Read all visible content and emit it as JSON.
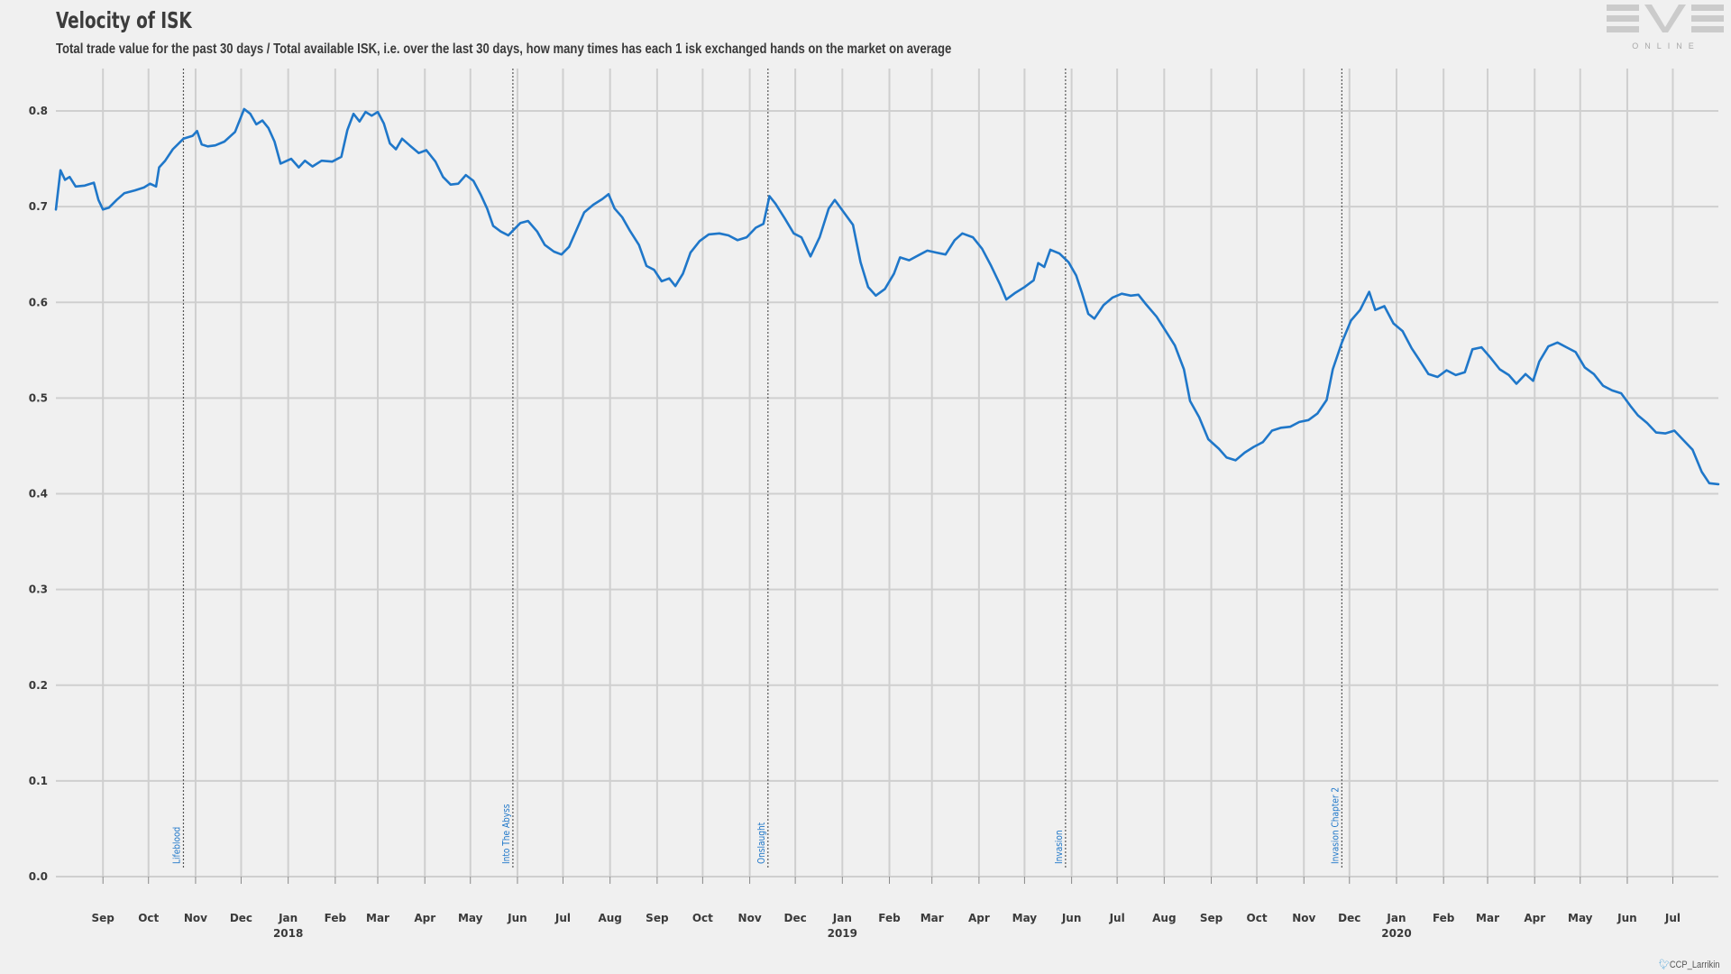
{
  "header": {
    "title": "Velocity of ISK",
    "subtitle": "Total trade value for the past 30 days / Total available ISK, i.e. over the last 30 days, how many times has each 1 isk exchanged hands on the market on average"
  },
  "logo": {
    "text": "EVE",
    "subtext": "ONLINE"
  },
  "credit": {
    "handle": "CCP_Larrikin",
    "icon": "twitter-bird-icon"
  },
  "colors": {
    "line": "#1f77c9",
    "grid": "#cfcfcf",
    "background": "#f0f0f0",
    "event_text": "#1f77c9"
  },
  "chart_data": {
    "type": "line",
    "title": "Velocity of ISK",
    "xlabel": "",
    "ylabel": "",
    "ylim": [
      0.0,
      0.8
    ],
    "y_ticks": [
      "0.0",
      "0.1",
      "0.2",
      "0.3",
      "0.4",
      "0.5",
      "0.6",
      "0.7",
      "0.8"
    ],
    "x_range": [
      "2017-08-01",
      "2020-07-31"
    ],
    "x_ticks": [
      {
        "date": "2017-09-01",
        "label": "Sep"
      },
      {
        "date": "2017-10-01",
        "label": "Oct"
      },
      {
        "date": "2017-11-01",
        "label": "Nov"
      },
      {
        "date": "2017-12-01",
        "label": "Dec"
      },
      {
        "date": "2018-01-01",
        "label": "Jan",
        "year": "2018"
      },
      {
        "date": "2018-02-01",
        "label": "Feb"
      },
      {
        "date": "2018-03-01",
        "label": "Mar"
      },
      {
        "date": "2018-04-01",
        "label": "Apr"
      },
      {
        "date": "2018-05-01",
        "label": "May"
      },
      {
        "date": "2018-06-01",
        "label": "Jun"
      },
      {
        "date": "2018-07-01",
        "label": "Jul"
      },
      {
        "date": "2018-08-01",
        "label": "Aug"
      },
      {
        "date": "2018-09-01",
        "label": "Sep"
      },
      {
        "date": "2018-10-01",
        "label": "Oct"
      },
      {
        "date": "2018-11-01",
        "label": "Nov"
      },
      {
        "date": "2018-12-01",
        "label": "Dec"
      },
      {
        "date": "2019-01-01",
        "label": "Jan",
        "year": "2019"
      },
      {
        "date": "2019-02-01",
        "label": "Feb"
      },
      {
        "date": "2019-03-01",
        "label": "Mar"
      },
      {
        "date": "2019-04-01",
        "label": "Apr"
      },
      {
        "date": "2019-05-01",
        "label": "May"
      },
      {
        "date": "2019-06-01",
        "label": "Jun"
      },
      {
        "date": "2019-07-01",
        "label": "Jul"
      },
      {
        "date": "2019-08-01",
        "label": "Aug"
      },
      {
        "date": "2019-09-01",
        "label": "Sep"
      },
      {
        "date": "2019-10-01",
        "label": "Oct"
      },
      {
        "date": "2019-11-01",
        "label": "Nov"
      },
      {
        "date": "2019-12-01",
        "label": "Dec"
      },
      {
        "date": "2020-01-01",
        "label": "Jan",
        "year": "2020"
      },
      {
        "date": "2020-02-01",
        "label": "Feb"
      },
      {
        "date": "2020-03-01",
        "label": "Mar"
      },
      {
        "date": "2020-04-01",
        "label": "Apr"
      },
      {
        "date": "2020-05-01",
        "label": "May"
      },
      {
        "date": "2020-06-01",
        "label": "Jun"
      },
      {
        "date": "2020-07-01",
        "label": "Jul"
      }
    ],
    "grid": true,
    "events": [
      {
        "date": "2017-10-24",
        "label": "Lifeblood"
      },
      {
        "date": "2018-05-29",
        "label": "Into The Abyss"
      },
      {
        "date": "2018-11-13",
        "label": "Onslaught"
      },
      {
        "date": "2019-05-28",
        "label": "Invasion"
      },
      {
        "date": "2019-11-26",
        "label": "Invasion Chapter 2"
      }
    ],
    "series": [
      {
        "color": "#1f77c9",
        "points": [
          [
            "2017-08-01",
            0.697
          ],
          [
            "2017-08-04",
            0.738
          ],
          [
            "2017-08-07",
            0.728
          ],
          [
            "2017-08-10",
            0.731
          ],
          [
            "2017-08-14",
            0.721
          ],
          [
            "2017-08-20",
            0.722
          ],
          [
            "2017-08-26",
            0.725
          ],
          [
            "2017-08-29",
            0.707
          ],
          [
            "2017-09-01",
            0.697
          ],
          [
            "2017-09-05",
            0.699
          ],
          [
            "2017-09-10",
            0.707
          ],
          [
            "2017-09-15",
            0.714
          ],
          [
            "2017-09-22",
            0.717
          ],
          [
            "2017-09-28",
            0.72
          ],
          [
            "2017-10-02",
            0.724
          ],
          [
            "2017-10-06",
            0.721
          ],
          [
            "2017-10-08",
            0.741
          ],
          [
            "2017-10-12",
            0.748
          ],
          [
            "2017-10-17",
            0.76
          ],
          [
            "2017-10-24",
            0.771
          ],
          [
            "2017-10-30",
            0.774
          ],
          [
            "2017-11-02",
            0.779
          ],
          [
            "2017-11-05",
            0.765
          ],
          [
            "2017-11-09",
            0.763
          ],
          [
            "2017-11-14",
            0.764
          ],
          [
            "2017-11-20",
            0.768
          ],
          [
            "2017-11-27",
            0.778
          ],
          [
            "2017-12-03",
            0.802
          ],
          [
            "2017-12-07",
            0.797
          ],
          [
            "2017-12-11",
            0.786
          ],
          [
            "2017-12-15",
            0.79
          ],
          [
            "2017-12-19",
            0.782
          ],
          [
            "2017-12-23",
            0.768
          ],
          [
            "2017-12-27",
            0.745
          ],
          [
            "2018-01-03",
            0.75
          ],
          [
            "2018-01-08",
            0.741
          ],
          [
            "2018-01-12",
            0.748
          ],
          [
            "2018-01-17",
            0.742
          ],
          [
            "2018-01-23",
            0.748
          ],
          [
            "2018-01-30",
            0.747
          ],
          [
            "2018-02-05",
            0.752
          ],
          [
            "2018-02-09",
            0.78
          ],
          [
            "2018-02-13",
            0.797
          ],
          [
            "2018-02-17",
            0.789
          ],
          [
            "2018-02-21",
            0.799
          ],
          [
            "2018-02-25",
            0.795
          ],
          [
            "2018-03-01",
            0.799
          ],
          [
            "2018-03-05",
            0.787
          ],
          [
            "2018-03-09",
            0.766
          ],
          [
            "2018-03-13",
            0.76
          ],
          [
            "2018-03-17",
            0.771
          ],
          [
            "2018-03-22",
            0.764
          ],
          [
            "2018-03-28",
            0.756
          ],
          [
            "2018-04-02",
            0.759
          ],
          [
            "2018-04-08",
            0.747
          ],
          [
            "2018-04-13",
            0.731
          ],
          [
            "2018-04-18",
            0.723
          ],
          [
            "2018-04-23",
            0.724
          ],
          [
            "2018-04-28",
            0.733
          ],
          [
            "2018-05-03",
            0.727
          ],
          [
            "2018-05-08",
            0.712
          ],
          [
            "2018-05-12",
            0.698
          ],
          [
            "2018-05-16",
            0.68
          ],
          [
            "2018-05-21",
            0.674
          ],
          [
            "2018-05-26",
            0.67
          ],
          [
            "2018-05-29",
            0.675
          ],
          [
            "2018-06-03",
            0.683
          ],
          [
            "2018-06-08",
            0.685
          ],
          [
            "2018-06-14",
            0.674
          ],
          [
            "2018-06-19",
            0.66
          ],
          [
            "2018-06-25",
            0.653
          ],
          [
            "2018-06-30",
            0.65
          ],
          [
            "2018-07-05",
            0.658
          ],
          [
            "2018-07-10",
            0.676
          ],
          [
            "2018-07-15",
            0.694
          ],
          [
            "2018-07-21",
            0.702
          ],
          [
            "2018-07-27",
            0.708
          ],
          [
            "2018-07-31",
            0.713
          ],
          [
            "2018-08-04",
            0.698
          ],
          [
            "2018-08-09",
            0.689
          ],
          [
            "2018-08-14",
            0.675
          ],
          [
            "2018-08-20",
            0.66
          ],
          [
            "2018-08-25",
            0.638
          ],
          [
            "2018-08-30",
            0.634
          ],
          [
            "2018-09-04",
            0.622
          ],
          [
            "2018-09-09",
            0.625
          ],
          [
            "2018-09-13",
            0.617
          ],
          [
            "2018-09-18",
            0.63
          ],
          [
            "2018-09-23",
            0.652
          ],
          [
            "2018-09-29",
            0.664
          ],
          [
            "2018-10-05",
            0.671
          ],
          [
            "2018-10-12",
            0.672
          ],
          [
            "2018-10-18",
            0.67
          ],
          [
            "2018-10-24",
            0.665
          ],
          [
            "2018-10-30",
            0.668
          ],
          [
            "2018-11-05",
            0.678
          ],
          [
            "2018-11-10",
            0.682
          ],
          [
            "2018-11-14",
            0.711
          ],
          [
            "2018-11-18",
            0.703
          ],
          [
            "2018-11-24",
            0.688
          ],
          [
            "2018-11-30",
            0.672
          ],
          [
            "2018-12-05",
            0.668
          ],
          [
            "2018-12-11",
            0.648
          ],
          [
            "2018-12-17",
            0.668
          ],
          [
            "2018-12-23",
            0.698
          ],
          [
            "2018-12-27",
            0.707
          ],
          [
            "2019-01-02",
            0.694
          ],
          [
            "2019-01-08",
            0.681
          ],
          [
            "2019-01-13",
            0.642
          ],
          [
            "2019-01-18",
            0.616
          ],
          [
            "2019-01-23",
            0.607
          ],
          [
            "2019-01-29",
            0.614
          ],
          [
            "2019-02-04",
            0.63
          ],
          [
            "2019-02-08",
            0.647
          ],
          [
            "2019-02-14",
            0.644
          ],
          [
            "2019-02-20",
            0.649
          ],
          [
            "2019-02-26",
            0.654
          ],
          [
            "2019-03-04",
            0.652
          ],
          [
            "2019-03-10",
            0.65
          ],
          [
            "2019-03-16",
            0.665
          ],
          [
            "2019-03-21",
            0.672
          ],
          [
            "2019-03-28",
            0.668
          ],
          [
            "2019-04-03",
            0.656
          ],
          [
            "2019-04-09",
            0.638
          ],
          [
            "2019-04-15",
            0.618
          ],
          [
            "2019-04-19",
            0.603
          ],
          [
            "2019-04-25",
            0.61
          ],
          [
            "2019-05-01",
            0.616
          ],
          [
            "2019-05-07",
            0.623
          ],
          [
            "2019-05-10",
            0.641
          ],
          [
            "2019-05-14",
            0.637
          ],
          [
            "2019-05-18",
            0.655
          ],
          [
            "2019-05-24",
            0.651
          ],
          [
            "2019-05-30",
            0.642
          ],
          [
            "2019-06-04",
            0.628
          ],
          [
            "2019-06-08",
            0.609
          ],
          [
            "2019-06-12",
            0.588
          ],
          [
            "2019-06-16",
            0.583
          ],
          [
            "2019-06-22",
            0.597
          ],
          [
            "2019-06-28",
            0.605
          ],
          [
            "2019-07-04",
            0.609
          ],
          [
            "2019-07-10",
            0.607
          ],
          [
            "2019-07-15",
            0.608
          ],
          [
            "2019-07-20",
            0.598
          ],
          [
            "2019-07-27",
            0.585
          ],
          [
            "2019-08-02",
            0.57
          ],
          [
            "2019-08-08",
            0.555
          ],
          [
            "2019-08-14",
            0.53
          ],
          [
            "2019-08-18",
            0.497
          ],
          [
            "2019-08-24",
            0.48
          ],
          [
            "2019-08-30",
            0.457
          ],
          [
            "2019-09-06",
            0.447
          ],
          [
            "2019-09-11",
            0.438
          ],
          [
            "2019-09-17",
            0.435
          ],
          [
            "2019-09-23",
            0.443
          ],
          [
            "2019-09-29",
            0.449
          ],
          [
            "2019-10-05",
            0.454
          ],
          [
            "2019-10-11",
            0.466
          ],
          [
            "2019-10-17",
            0.469
          ],
          [
            "2019-10-23",
            0.47
          ],
          [
            "2019-10-29",
            0.475
          ],
          [
            "2019-11-04",
            0.477
          ],
          [
            "2019-11-10",
            0.484
          ],
          [
            "2019-11-16",
            0.498
          ],
          [
            "2019-11-20",
            0.53
          ],
          [
            "2019-11-26",
            0.558
          ],
          [
            "2019-12-02",
            0.581
          ],
          [
            "2019-12-08",
            0.592
          ],
          [
            "2019-12-14",
            0.611
          ],
          [
            "2019-12-18",
            0.592
          ],
          [
            "2019-12-24",
            0.596
          ],
          [
            "2019-12-30",
            0.578
          ],
          [
            "2020-01-05",
            0.57
          ],
          [
            "2020-01-11",
            0.552
          ],
          [
            "2020-01-16",
            0.54
          ],
          [
            "2020-01-22",
            0.525
          ],
          [
            "2020-01-28",
            0.522
          ],
          [
            "2020-02-03",
            0.529
          ],
          [
            "2020-02-09",
            0.524
          ],
          [
            "2020-02-15",
            0.527
          ],
          [
            "2020-02-20",
            0.551
          ],
          [
            "2020-02-26",
            0.553
          ],
          [
            "2020-03-03",
            0.542
          ],
          [
            "2020-03-09",
            0.53
          ],
          [
            "2020-03-15",
            0.524
          ],
          [
            "2020-03-20",
            0.515
          ],
          [
            "2020-03-26",
            0.525
          ],
          [
            "2020-03-31",
            0.518
          ],
          [
            "2020-04-04",
            0.538
          ],
          [
            "2020-04-10",
            0.554
          ],
          [
            "2020-04-16",
            0.558
          ],
          [
            "2020-04-22",
            0.553
          ],
          [
            "2020-04-28",
            0.548
          ],
          [
            "2020-05-04",
            0.532
          ],
          [
            "2020-05-10",
            0.525
          ],
          [
            "2020-05-16",
            0.513
          ],
          [
            "2020-05-22",
            0.508
          ],
          [
            "2020-05-28",
            0.505
          ],
          [
            "2020-06-03",
            0.492
          ],
          [
            "2020-06-08",
            0.482
          ],
          [
            "2020-06-14",
            0.474
          ],
          [
            "2020-06-20",
            0.464
          ],
          [
            "2020-06-26",
            0.463
          ],
          [
            "2020-07-02",
            0.466
          ],
          [
            "2020-07-08",
            0.456
          ],
          [
            "2020-07-14",
            0.446
          ],
          [
            "2020-07-20",
            0.423
          ],
          [
            "2020-07-25",
            0.411
          ],
          [
            "2020-07-31",
            0.41
          ]
        ]
      }
    ]
  }
}
